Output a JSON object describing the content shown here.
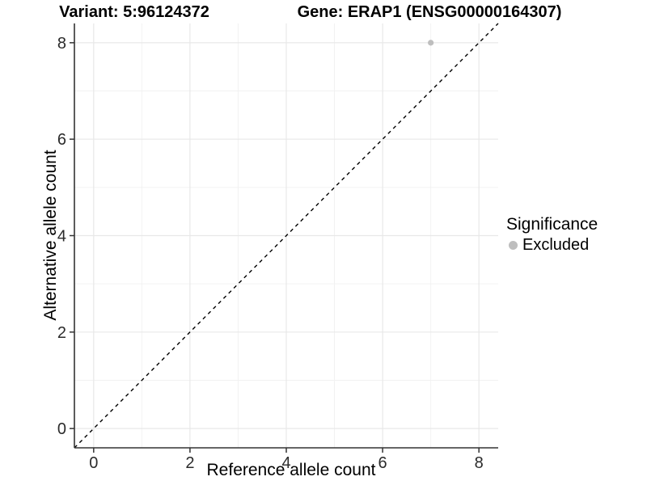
{
  "title": {
    "variant": "Variant: 5:96124372",
    "gene": "Gene: ERAP1 (ENSG00000164307)"
  },
  "axes": {
    "x_label": "Reference allele count",
    "y_label": "Alternative allele count"
  },
  "legend": {
    "title": "Significance",
    "items": [
      {
        "label": "Excluded",
        "color": "#bebebe"
      }
    ]
  },
  "colors": {
    "background": "#ffffff",
    "grid_major": "#e8e8e8",
    "grid_minor": "#f2f2f2",
    "axis_line": "#333333",
    "tick_text": "#2b2b2b",
    "title_text": "#000000",
    "point": "#bebebe",
    "ref_line": "#000000"
  },
  "chart_data": {
    "type": "scatter",
    "title": "Variant: 5:96124372    Gene: ERAP1 (ENSG00000164307)",
    "xlabel": "Reference allele count",
    "ylabel": "Alternative allele count",
    "xlim": [
      -0.4,
      8.4
    ],
    "ylim": [
      -0.4,
      8.4
    ],
    "x_ticks": [
      0,
      2,
      4,
      6,
      8
    ],
    "y_ticks": [
      0,
      2,
      4,
      6,
      8
    ],
    "x_minor_ticks": [
      1,
      3,
      5,
      7
    ],
    "y_minor_ticks": [
      1,
      3,
      5,
      7
    ],
    "grid": "major_and_minor",
    "legend_position": "right-middle",
    "series": [
      {
        "name": "Excluded",
        "color": "#bebebe",
        "marker": "circle",
        "points": [
          {
            "x": 7,
            "y": 8
          }
        ]
      }
    ],
    "reference_line": {
      "kind": "identity y=x",
      "style": "dashed",
      "color": "#000000",
      "x1": -0.4,
      "y1": -0.4,
      "x2": 8.4,
      "y2": 8.4
    }
  }
}
